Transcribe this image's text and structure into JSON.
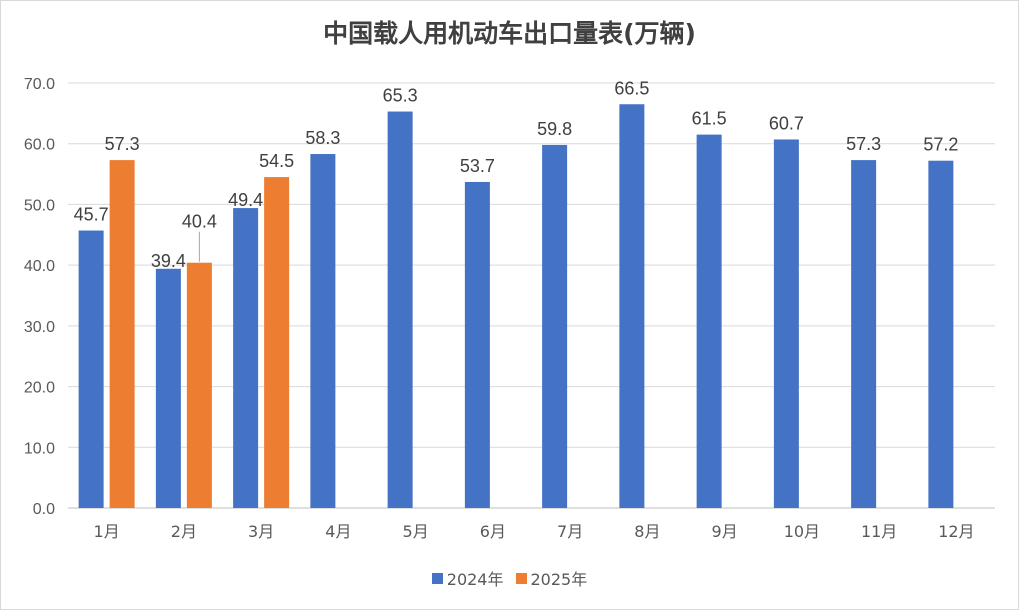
{
  "chart_data": {
    "type": "bar",
    "title": "中国载人用机动车出口量表(万辆)",
    "categories": [
      "1月",
      "2月",
      "3月",
      "4月",
      "5月",
      "6月",
      "7月",
      "8月",
      "9月",
      "10月",
      "11月",
      "12月"
    ],
    "series": [
      {
        "name": "2024年",
        "color": "#4472C4",
        "values": [
          45.7,
          39.4,
          49.4,
          58.3,
          65.3,
          53.7,
          59.8,
          66.5,
          61.5,
          60.7,
          57.3,
          57.2
        ]
      },
      {
        "name": "2025年",
        "color": "#ED7D31",
        "values": [
          57.3,
          40.4,
          54.5,
          null,
          null,
          null,
          null,
          null,
          null,
          null,
          null,
          null
        ]
      }
    ],
    "ylim": [
      0,
      70
    ],
    "yticks": [
      "0.0",
      "10.0",
      "20.0",
      "30.0",
      "40.0",
      "50.0",
      "60.0",
      "70.0"
    ],
    "grid": true,
    "legend": "bottom",
    "xlabel": "",
    "ylabel": ""
  }
}
